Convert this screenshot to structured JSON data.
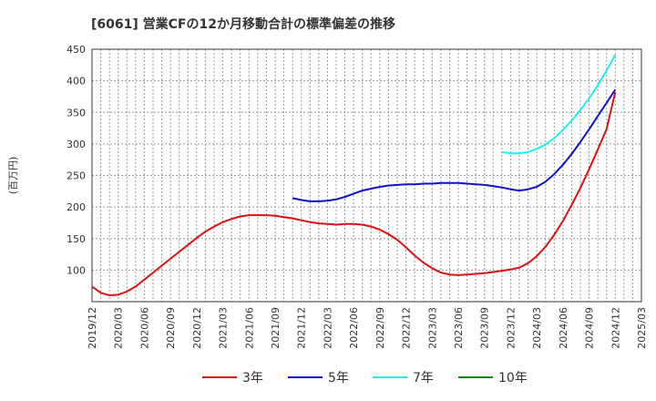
{
  "chart_data": {
    "type": "line",
    "title": "[6061]  営業CFの12か月移動合計の標準偏差の推移",
    "ylabel": "(百万円)",
    "xlabel": "",
    "ylim": [
      50,
      450
    ],
    "yticks": [
      100,
      150,
      200,
      250,
      300,
      350,
      400,
      450
    ],
    "xlim": [
      "2019-12",
      "2025-03"
    ],
    "xticks": [
      "2019/12",
      "2020/03",
      "2020/06",
      "2020/09",
      "2020/12",
      "2021/03",
      "2021/06",
      "2021/09",
      "2021/12",
      "2022/03",
      "2022/06",
      "2022/09",
      "2022/12",
      "2023/03",
      "2023/06",
      "2023/09",
      "2023/12",
      "2024/03",
      "2024/06",
      "2024/09",
      "2024/12",
      "2025/03"
    ],
    "grid": true,
    "legend_position": "bottom",
    "series": [
      {
        "name": "3年",
        "color": "#dd1111",
        "points": [
          [
            "2019-12",
            74
          ],
          [
            "2020-01",
            64
          ],
          [
            "2020-02",
            60
          ],
          [
            "2020-03",
            61
          ],
          [
            "2020-04",
            66
          ],
          [
            "2020-05",
            74
          ],
          [
            "2020-06",
            85
          ],
          [
            "2020-07",
            96
          ],
          [
            "2020-08",
            107
          ],
          [
            "2020-09",
            118
          ],
          [
            "2020-10",
            129
          ],
          [
            "2020-11",
            140
          ],
          [
            "2020-12",
            151
          ],
          [
            "2021-01",
            161
          ],
          [
            "2021-02",
            169
          ],
          [
            "2021-03",
            176
          ],
          [
            "2021-04",
            181
          ],
          [
            "2021-05",
            185
          ],
          [
            "2021-06",
            187
          ],
          [
            "2021-07",
            187
          ],
          [
            "2021-08",
            187
          ],
          [
            "2021-09",
            186
          ],
          [
            "2021-10",
            184
          ],
          [
            "2021-11",
            182
          ],
          [
            "2021-12",
            179
          ],
          [
            "2022-01",
            176
          ],
          [
            "2022-02",
            174
          ],
          [
            "2022-03",
            173
          ],
          [
            "2022-04",
            172
          ],
          [
            "2022-05",
            173
          ],
          [
            "2022-06",
            173
          ],
          [
            "2022-07",
            172
          ],
          [
            "2022-08",
            169
          ],
          [
            "2022-09",
            164
          ],
          [
            "2022-10",
            157
          ],
          [
            "2022-11",
            148
          ],
          [
            "2022-12",
            136
          ],
          [
            "2023-01",
            123
          ],
          [
            "2023-02",
            112
          ],
          [
            "2023-03",
            103
          ],
          [
            "2023-04",
            96
          ],
          [
            "2023-05",
            93
          ],
          [
            "2023-06",
            92
          ],
          [
            "2023-07",
            93
          ],
          [
            "2023-08",
            94
          ],
          [
            "2023-09",
            95
          ],
          [
            "2023-10",
            97
          ],
          [
            "2023-11",
            99
          ],
          [
            "2023-12",
            101
          ],
          [
            "2024-01",
            104
          ],
          [
            "2024-02",
            111
          ],
          [
            "2024-03",
            122
          ],
          [
            "2024-04",
            137
          ],
          [
            "2024-05",
            156
          ],
          [
            "2024-06",
            178
          ],
          [
            "2024-07",
            203
          ],
          [
            "2024-08",
            230
          ],
          [
            "2024-09",
            260
          ],
          [
            "2024-10",
            291
          ],
          [
            "2024-11",
            323
          ],
          [
            "2024-12",
            382
          ]
        ]
      },
      {
        "name": "5年",
        "color": "#1111cc",
        "points": [
          [
            "2021-11",
            214
          ],
          [
            "2021-12",
            211
          ],
          [
            "2022-01",
            209
          ],
          [
            "2022-02",
            209
          ],
          [
            "2022-03",
            210
          ],
          [
            "2022-04",
            212
          ],
          [
            "2022-05",
            216
          ],
          [
            "2022-06",
            221
          ],
          [
            "2022-07",
            226
          ],
          [
            "2022-08",
            229
          ],
          [
            "2022-09",
            232
          ],
          [
            "2022-10",
            234
          ],
          [
            "2022-11",
            235
          ],
          [
            "2022-12",
            236
          ],
          [
            "2023-01",
            236
          ],
          [
            "2023-02",
            237
          ],
          [
            "2023-03",
            237
          ],
          [
            "2023-04",
            238
          ],
          [
            "2023-05",
            238
          ],
          [
            "2023-06",
            238
          ],
          [
            "2023-07",
            237
          ],
          [
            "2023-08",
            236
          ],
          [
            "2023-09",
            235
          ],
          [
            "2023-10",
            233
          ],
          [
            "2023-11",
            231
          ],
          [
            "2023-12",
            228
          ],
          [
            "2024-01",
            226
          ],
          [
            "2024-02",
            228
          ],
          [
            "2024-03",
            232
          ],
          [
            "2024-04",
            240
          ],
          [
            "2024-05",
            252
          ],
          [
            "2024-06",
            267
          ],
          [
            "2024-07",
            284
          ],
          [
            "2024-08",
            303
          ],
          [
            "2024-09",
            323
          ],
          [
            "2024-10",
            344
          ],
          [
            "2024-11",
            365
          ],
          [
            "2024-12",
            386
          ]
        ]
      },
      {
        "name": "7年",
        "color": "#22eeee",
        "points": [
          [
            "2023-11",
            287
          ],
          [
            "2023-12",
            285
          ],
          [
            "2024-01",
            285
          ],
          [
            "2024-02",
            287
          ],
          [
            "2024-03",
            292
          ],
          [
            "2024-04",
            299
          ],
          [
            "2024-05",
            309
          ],
          [
            "2024-06",
            322
          ],
          [
            "2024-07",
            337
          ],
          [
            "2024-08",
            354
          ],
          [
            "2024-09",
            372
          ],
          [
            "2024-10",
            393
          ],
          [
            "2024-11",
            416
          ],
          [
            "2024-12",
            441
          ]
        ]
      },
      {
        "name": "10年",
        "color": "#118811",
        "points": []
      }
    ]
  }
}
